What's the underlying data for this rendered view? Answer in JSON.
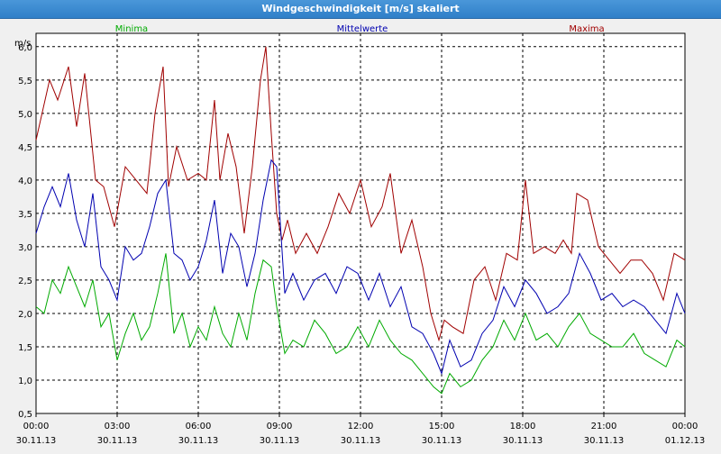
{
  "window": {
    "title": "Windgeschwindigkeit [m/s] skaliert"
  },
  "chart_data": {
    "type": "line",
    "title": "Windgeschwindigkeit [m/s] skaliert",
    "ylabel": "m/s",
    "ylim": [
      0.5,
      6.2
    ],
    "xlim": [
      0,
      24
    ],
    "yticks": [
      "0,5",
      "1,0",
      "1,5",
      "2,0",
      "2,5",
      "3,0",
      "3,5",
      "4,0",
      "4,5",
      "5,0",
      "5,5",
      "6,0"
    ],
    "xticks": [
      {
        "time": "00:00",
        "date": "30.11.13"
      },
      {
        "time": "03:00",
        "date": "30.11.13"
      },
      {
        "time": "06:00",
        "date": "30.11.13"
      },
      {
        "time": "09:00",
        "date": "30.11.13"
      },
      {
        "time": "12:00",
        "date": "30.11.13"
      },
      {
        "time": "15:00",
        "date": "30.11.13"
      },
      {
        "time": "18:00",
        "date": "30.11.13"
      },
      {
        "time": "21:00",
        "date": "30.11.13"
      },
      {
        "time": "00:00",
        "date": "01.12.13"
      }
    ],
    "grid": true,
    "series": [
      {
        "name": "Maxima",
        "color": "#a00000",
        "x": [
          0,
          0.5,
          0.8,
          1.2,
          1.5,
          1.8,
          2.2,
          2.5,
          2.9,
          3.3,
          3.7,
          4.1,
          4.4,
          4.7,
          4.9,
          5.2,
          5.6,
          6.0,
          6.3,
          6.6,
          6.8,
          7.1,
          7.4,
          7.7,
          8.0,
          8.3,
          8.5,
          8.7,
          8.9,
          9.1,
          9.3,
          9.6,
          10.0,
          10.4,
          10.8,
          11.2,
          11.6,
          12.0,
          12.4,
          12.8,
          13.1,
          13.5,
          13.9,
          14.3,
          14.6,
          14.9,
          15.1,
          15.4,
          15.8,
          16.2,
          16.6,
          17.0,
          17.4,
          17.8,
          18.1,
          18.4,
          18.8,
          19.2,
          19.5,
          19.8,
          20.0,
          20.4,
          20.8,
          21.2,
          21.6,
          22.0,
          22.4,
          22.8,
          23.2,
          23.6,
          24.0
        ],
        "values": [
          4.6,
          5.5,
          5.2,
          5.7,
          4.8,
          5.6,
          4.0,
          3.9,
          3.3,
          4.2,
          4.0,
          3.8,
          5.0,
          5.7,
          3.9,
          4.5,
          4.0,
          4.1,
          4.0,
          5.2,
          4.0,
          4.7,
          4.2,
          3.2,
          4.2,
          5.5,
          6.0,
          4.7,
          3.5,
          3.1,
          3.4,
          2.9,
          3.2,
          2.9,
          3.3,
          3.8,
          3.5,
          4.0,
          3.3,
          3.6,
          4.1,
          2.9,
          3.4,
          2.7,
          2.0,
          1.6,
          1.9,
          1.8,
          1.7,
          2.5,
          2.7,
          2.2,
          2.9,
          2.8,
          4.0,
          2.9,
          3.0,
          2.9,
          3.1,
          2.9,
          3.8,
          3.7,
          3.0,
          2.8,
          2.6,
          2.8,
          2.8,
          2.6,
          2.2,
          2.9,
          2.8
        ]
      },
      {
        "name": "Mittelwerte",
        "color": "#0000b0",
        "x": [
          0,
          0.3,
          0.6,
          0.9,
          1.2,
          1.5,
          1.8,
          2.1,
          2.4,
          2.7,
          3.0,
          3.3,
          3.6,
          3.9,
          4.2,
          4.5,
          4.8,
          5.1,
          5.4,
          5.7,
          6.0,
          6.3,
          6.6,
          6.9,
          7.2,
          7.5,
          7.8,
          8.1,
          8.4,
          8.7,
          8.9,
          9.2,
          9.5,
          9.9,
          10.3,
          10.7,
          11.1,
          11.5,
          11.9,
          12.3,
          12.7,
          13.1,
          13.5,
          13.9,
          14.3,
          14.7,
          15.0,
          15.3,
          15.7,
          16.1,
          16.5,
          16.9,
          17.3,
          17.7,
          18.1,
          18.5,
          18.9,
          19.3,
          19.7,
          20.1,
          20.5,
          20.9,
          21.3,
          21.7,
          22.1,
          22.5,
          22.9,
          23.3,
          23.7,
          24.0
        ],
        "values": [
          3.2,
          3.6,
          3.9,
          3.6,
          4.1,
          3.4,
          3.0,
          3.8,
          2.7,
          2.5,
          2.2,
          3.0,
          2.8,
          2.9,
          3.3,
          3.8,
          4.0,
          2.9,
          2.8,
          2.5,
          2.7,
          3.1,
          3.7,
          2.6,
          3.2,
          3.0,
          2.4,
          2.9,
          3.7,
          4.3,
          4.2,
          2.3,
          2.6,
          2.2,
          2.5,
          2.6,
          2.3,
          2.7,
          2.6,
          2.2,
          2.6,
          2.1,
          2.4,
          1.8,
          1.7,
          1.4,
          1.1,
          1.6,
          1.2,
          1.3,
          1.7,
          1.9,
          2.4,
          2.1,
          2.5,
          2.3,
          2.0,
          2.1,
          2.3,
          2.9,
          2.6,
          2.2,
          2.3,
          2.1,
          2.2,
          2.1,
          1.9,
          1.7,
          2.3,
          2.0
        ]
      },
      {
        "name": "Minima",
        "color": "#00aa00",
        "x": [
          0,
          0.3,
          0.6,
          0.9,
          1.2,
          1.5,
          1.8,
          2.1,
          2.4,
          2.7,
          3.0,
          3.3,
          3.6,
          3.9,
          4.2,
          4.5,
          4.8,
          5.1,
          5.4,
          5.7,
          6.0,
          6.3,
          6.6,
          6.9,
          7.2,
          7.5,
          7.8,
          8.1,
          8.4,
          8.7,
          8.9,
          9.2,
          9.5,
          9.9,
          10.3,
          10.7,
          11.1,
          11.5,
          11.9,
          12.3,
          12.7,
          13.1,
          13.5,
          13.9,
          14.3,
          14.7,
          15.0,
          15.3,
          15.7,
          16.1,
          16.5,
          16.9,
          17.3,
          17.7,
          18.1,
          18.5,
          18.9,
          19.3,
          19.7,
          20.1,
          20.5,
          20.9,
          21.3,
          21.7,
          22.1,
          22.5,
          22.9,
          23.3,
          23.7,
          24.0
        ],
        "values": [
          2.1,
          2.0,
          2.5,
          2.3,
          2.7,
          2.4,
          2.1,
          2.5,
          1.8,
          2.0,
          1.3,
          1.7,
          2.0,
          1.6,
          1.8,
          2.3,
          2.9,
          1.7,
          2.0,
          1.5,
          1.8,
          1.6,
          2.1,
          1.7,
          1.5,
          2.0,
          1.6,
          2.3,
          2.8,
          2.7,
          2.1,
          1.4,
          1.6,
          1.5,
          1.9,
          1.7,
          1.4,
          1.5,
          1.8,
          1.5,
          1.9,
          1.6,
          1.4,
          1.3,
          1.1,
          0.9,
          0.8,
          1.1,
          0.9,
          1.0,
          1.3,
          1.5,
          1.9,
          1.6,
          2.0,
          1.6,
          1.7,
          1.5,
          1.8,
          2.0,
          1.7,
          1.6,
          1.5,
          1.5,
          1.7,
          1.4,
          1.3,
          1.2,
          1.6,
          1.5
        ]
      }
    ]
  }
}
